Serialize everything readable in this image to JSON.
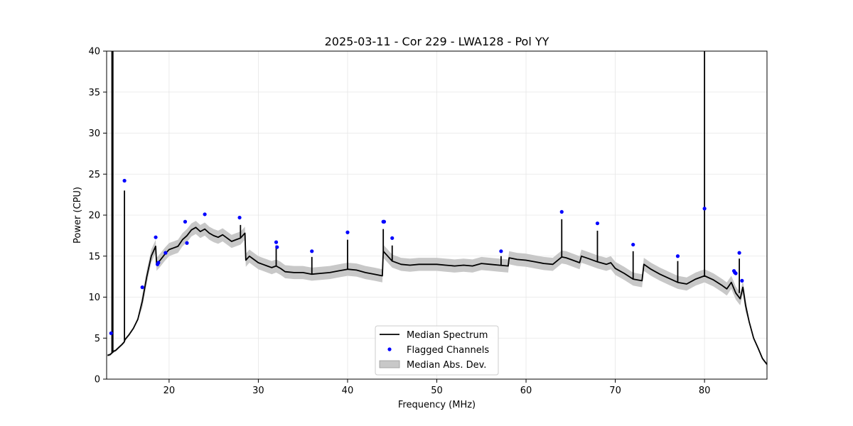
{
  "chart_data": {
    "type": "line",
    "title": "2025-03-11 - Cor 229 - LWA128 - Pol YY",
    "xlabel": "Frequency (MHz)",
    "ylabel": "Power (CPU)",
    "xlim": [
      13,
      87
    ],
    "ylim": [
      0,
      40
    ],
    "xticks": [
      20,
      30,
      40,
      50,
      60,
      70,
      80
    ],
    "xtick_labels": [
      "20",
      "30",
      "40",
      "50",
      "60",
      "70",
      "80"
    ],
    "yticks": [
      0,
      5,
      10,
      15,
      20,
      25,
      30,
      35,
      40
    ],
    "ytick_labels": [
      "0",
      "5",
      "10",
      "15",
      "20",
      "25",
      "30",
      "35",
      "40"
    ],
    "grid": true,
    "legend_position": "lower-center",
    "legend": [
      {
        "label": "Median Spectrum",
        "kind": "line",
        "color": "#000000"
      },
      {
        "label": "Flagged Channels",
        "kind": "marker",
        "color": "#0000ff"
      },
      {
        "label": "Median Abs. Dev.",
        "kind": "band",
        "color": "#c8c8c8"
      }
    ],
    "series": [
      {
        "name": "Median Spectrum",
        "color": "#000000",
        "x": [
          13.1,
          13.4,
          13.6,
          13.7,
          13.8,
          14.0,
          14.3,
          14.7,
          14.95,
          15.0,
          15.05,
          15.5,
          16.0,
          16.5,
          17.0,
          17.5,
          18.0,
          18.5,
          18.6,
          19.0,
          19.5,
          20.0,
          20.5,
          21.0,
          21.5,
          22.0,
          22.5,
          23.0,
          23.5,
          24.0,
          24.5,
          25.0,
          25.5,
          26.0,
          26.5,
          27.0,
          27.5,
          28.0,
          28.5,
          28.6,
          29.0,
          29.5,
          30.0,
          30.5,
          31.0,
          31.5,
          32.0,
          32.5,
          33.0,
          34.0,
          35.0,
          36.0,
          37.0,
          38.0,
          39.0,
          40.0,
          41.0,
          42.0,
          43.0,
          43.9,
          44.0,
          44.5,
          45.0,
          46.0,
          47.0,
          48.0,
          49.0,
          50.0,
          51.0,
          52.0,
          53.0,
          54.0,
          55.0,
          56.0,
          57.0,
          58.0,
          58.1,
          59.0,
          60.0,
          61.0,
          62.0,
          63.0,
          64.0,
          64.5,
          65.0,
          66.0,
          66.2,
          67.0,
          68.0,
          69.0,
          69.5,
          70.0,
          71.0,
          72.0,
          73.0,
          73.2,
          74.0,
          75.0,
          76.0,
          77.0,
          78.0,
          79.0,
          80.0,
          81.0,
          82.0,
          82.5,
          83.0,
          83.5,
          84.0,
          84.3,
          84.6,
          85.0,
          85.5,
          86.0,
          86.5,
          87.0
        ],
        "y": [
          2.9,
          3.0,
          3.2,
          3.3,
          3.4,
          3.5,
          3.8,
          4.2,
          4.5,
          4.6,
          4.8,
          5.4,
          6.2,
          7.3,
          9.5,
          12.5,
          15.0,
          16.2,
          14.0,
          14.5,
          15.2,
          15.8,
          16.0,
          16.2,
          17.0,
          17.5,
          18.2,
          18.5,
          18.0,
          18.3,
          17.8,
          17.5,
          17.3,
          17.6,
          17.2,
          16.8,
          17.0,
          17.2,
          17.8,
          14.5,
          15.0,
          14.6,
          14.2,
          14.0,
          13.8,
          13.6,
          13.8,
          13.5,
          13.1,
          13.0,
          13.0,
          12.8,
          12.9,
          13.0,
          13.2,
          13.4,
          13.3,
          13.0,
          12.8,
          12.6,
          15.6,
          15.0,
          14.4,
          14.0,
          13.9,
          14.0,
          14.0,
          14.0,
          13.9,
          13.8,
          13.9,
          13.8,
          14.1,
          14.0,
          13.9,
          13.8,
          14.8,
          14.6,
          14.5,
          14.3,
          14.1,
          14.0,
          14.9,
          14.8,
          14.6,
          14.2,
          15.0,
          14.7,
          14.3,
          14.0,
          14.2,
          13.5,
          12.9,
          12.2,
          12.0,
          14.0,
          13.4,
          12.8,
          12.3,
          11.8,
          11.6,
          12.2,
          12.6,
          12.1,
          11.4,
          11.0,
          11.8,
          10.5,
          9.8,
          11.2,
          9.0,
          7.0,
          5.0,
          3.8,
          2.5,
          1.8
        ]
      },
      {
        "name": "Flagged Channels",
        "color": "#0000ff",
        "x": [
          13.5,
          15.0,
          17.0,
          18.5,
          18.7,
          18.8,
          19.6,
          21.8,
          22.0,
          24.0,
          27.9,
          32.0,
          32.1,
          36.0,
          40.0,
          44.0,
          44.1,
          45.0,
          57.2,
          64.0,
          68.0,
          72.0,
          77.0,
          80.0,
          83.3,
          83.4,
          83.5,
          83.9,
          84.2
        ],
        "y": [
          5.6,
          24.2,
          11.2,
          17.3,
          14.0,
          14.2,
          15.4,
          19.2,
          16.6,
          20.1,
          19.7,
          16.7,
          16.1,
          15.6,
          17.9,
          19.2,
          19.2,
          17.2,
          15.6,
          20.4,
          19.0,
          16.4,
          15.0,
          20.8,
          13.2,
          13.0,
          12.9,
          15.4,
          12.0
        ]
      }
    ],
    "spikes": [
      {
        "x": 13.6,
        "y": 40
      },
      {
        "x": 13.7,
        "y": 40
      },
      {
        "x": 15.0,
        "y": 23.0
      },
      {
        "x": 28.0,
        "y": 18.8
      },
      {
        "x": 32.0,
        "y": 16.3
      },
      {
        "x": 36.0,
        "y": 14.9
      },
      {
        "x": 40.0,
        "y": 17.0
      },
      {
        "x": 44.0,
        "y": 18.3
      },
      {
        "x": 45.0,
        "y": 16.3
      },
      {
        "x": 57.2,
        "y": 15.0
      },
      {
        "x": 64.0,
        "y": 19.5
      },
      {
        "x": 68.0,
        "y": 18.1
      },
      {
        "x": 72.0,
        "y": 15.6
      },
      {
        "x": 77.0,
        "y": 14.4
      },
      {
        "x": 80.0,
        "y": 40
      },
      {
        "x": 83.9,
        "y": 14.7
      }
    ],
    "band_halfwidth": 0.8
  }
}
